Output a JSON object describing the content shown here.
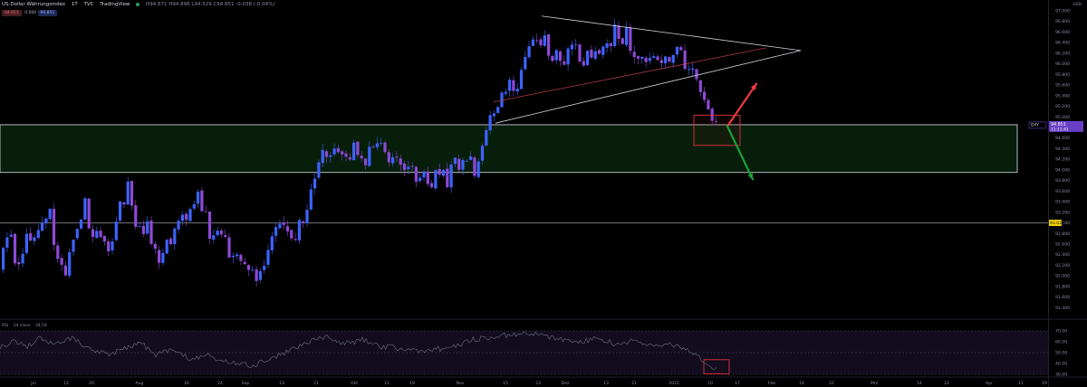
{
  "header": {
    "symbol": "US-Dollar Währungsindex",
    "timeframe": "1T",
    "exchange": "TVC",
    "provider": "TradingView",
    "ohlc": "O94.871 H94.896 L94.529 C94.851 -0.038 (-0.04%)",
    "pill_left": "94.851",
    "pill_mid": "0.000",
    "pill_right": "94.851"
  },
  "price_axis": {
    "currency": "USD",
    "current_label": "DXY",
    "current_price": "94.851",
    "countdown": "11:11:41",
    "marker_price": "93.020"
  },
  "rsi": {
    "label": "RSI",
    "params": "14 close",
    "value": "34.54"
  },
  "colors": {
    "bull": "#3d63ff",
    "bear": "#8e49d6",
    "zone_border": "#c9ccd2",
    "zone_fill": "#07200c",
    "triangle_upper": "#cfd2d8",
    "triangle_lower": "#cfd2d8",
    "channel": "#b03a46",
    "box": "#e0323c",
    "arrow_up": "#ef3b3b",
    "arrow_down": "#16a33a",
    "rsi_line": "#6f7280"
  },
  "chart_data": {
    "type": "candlestick",
    "ylim": [
      91.2,
      97.1
    ],
    "y_ticks": [
      91.4,
      91.6,
      91.8,
      92.0,
      92.2,
      92.4,
      92.6,
      92.8,
      93.0,
      93.2,
      93.4,
      93.6,
      93.8,
      94.0,
      94.2,
      94.4,
      94.6,
      94.8,
      95.0,
      95.2,
      95.4,
      95.6,
      95.8,
      96.0,
      96.2,
      96.4,
      96.6,
      96.8,
      97.0
    ],
    "x_ticks": [
      "Jul",
      "12",
      "20",
      "Aug",
      "16",
      "24",
      "Sep",
      "13",
      "21",
      "Okt",
      "11",
      "19",
      "Nov",
      "15",
      "23",
      "Dez",
      "13",
      "21",
      "2022",
      "10",
      "17",
      "Feb",
      "14",
      "22",
      "Mrz",
      "14",
      "22",
      "Apr",
      "11",
      "19"
    ],
    "price_trend": [
      [
        0,
        91.95
      ],
      [
        8,
        92.55
      ],
      [
        14,
        92.9
      ],
      [
        20,
        92.2
      ],
      [
        27,
        92.55
      ],
      [
        36,
        92.7
      ],
      [
        45,
        92.75
      ],
      [
        58,
        93.15
      ],
      [
        64,
        92.45
      ],
      [
        74,
        91.95
      ],
      [
        85,
        92.75
      ],
      [
        96,
        93.45
      ],
      [
        102,
        92.9
      ],
      [
        112,
        92.85
      ],
      [
        122,
        92.3
      ],
      [
        132,
        93.2
      ],
      [
        140,
        93.5
      ],
      [
        146,
        93.7
      ],
      [
        152,
        93.1
      ],
      [
        158,
        92.8
      ],
      [
        166,
        93.1
      ],
      [
        172,
        92.5
      ],
      [
        180,
        92.2
      ],
      [
        190,
        92.7
      ],
      [
        200,
        92.9
      ],
      [
        212,
        93.2
      ],
      [
        222,
        93.6
      ],
      [
        230,
        93.1
      ],
      [
        236,
        92.7
      ],
      [
        246,
        92.75
      ],
      [
        256,
        92.45
      ],
      [
        266,
        92.35
      ],
      [
        276,
        92.2
      ],
      [
        288,
        91.9
      ],
      [
        298,
        92.6
      ],
      [
        308,
        93.1
      ],
      [
        318,
        92.85
      ],
      [
        330,
        92.8
      ],
      [
        342,
        93.3
      ],
      [
        350,
        93.8
      ],
      [
        356,
        94.45
      ],
      [
        362,
        94.1
      ],
      [
        370,
        94.35
      ],
      [
        378,
        94.4
      ],
      [
        388,
        94.3
      ],
      [
        398,
        94.4
      ],
      [
        404,
        94.1
      ],
      [
        410,
        94.3
      ],
      [
        418,
        94.55
      ],
      [
        426,
        94.45
      ],
      [
        432,
        94.05
      ],
      [
        438,
        94.2
      ],
      [
        446,
        94.1
      ],
      [
        454,
        94.0
      ],
      [
        462,
        93.85
      ],
      [
        470,
        93.95
      ],
      [
        478,
        93.75
      ],
      [
        486,
        93.9
      ],
      [
        492,
        93.85
      ],
      [
        498,
        93.75
      ],
      [
        506,
        94.3
      ],
      [
        512,
        94.05
      ],
      [
        520,
        94.2
      ],
      [
        528,
        94.0
      ],
      [
        536,
        94.6
      ],
      [
        546,
        95.05
      ],
      [
        554,
        95.3
      ],
      [
        562,
        95.6
      ],
      [
        570,
        95.5
      ],
      [
        578,
        95.85
      ],
      [
        586,
        96.35
      ],
      [
        592,
        96.6
      ],
      [
        598,
        96.3
      ],
      [
        604,
        96.5
      ],
      [
        610,
        96.05
      ],
      [
        618,
        96.2
      ],
      [
        626,
        96.05
      ],
      [
        634,
        96.35
      ],
      [
        642,
        96.2
      ],
      [
        650,
        96.05
      ],
      [
        658,
        96.3
      ],
      [
        666,
        96.15
      ],
      [
        674,
        96.3
      ],
      [
        682,
        96.6
      ],
      [
        688,
        96.2
      ],
      [
        694,
        96.65
      ],
      [
        700,
        96.3
      ],
      [
        706,
        96.0
      ],
      [
        714,
        96.15
      ],
      [
        722,
        96.1
      ],
      [
        730,
        96.05
      ],
      [
        738,
        96.0
      ],
      [
        746,
        96.3
      ],
      [
        754,
        96.15
      ],
      [
        760,
        95.95
      ],
      [
        766,
        95.8
      ],
      [
        772,
        95.75
      ],
      [
        778,
        95.55
      ],
      [
        784,
        95.0
      ],
      [
        788,
        94.95
      ],
      [
        792,
        94.85
      ]
    ],
    "support_zone": [
      93.95,
      94.85
    ],
    "horizontal_level": 93.0,
    "rsi_ylim": [
      30,
      70
    ],
    "rsi_ticks": [
      30,
      40,
      50,
      60,
      70
    ],
    "rsi_trend": [
      [
        0,
        55
      ],
      [
        15,
        60
      ],
      [
        30,
        56
      ],
      [
        45,
        64
      ],
      [
        60,
        58
      ],
      [
        80,
        63
      ],
      [
        100,
        52
      ],
      [
        120,
        48
      ],
      [
        140,
        55
      ],
      [
        155,
        60
      ],
      [
        170,
        48
      ],
      [
        190,
        53
      ],
      [
        210,
        44
      ],
      [
        230,
        47
      ],
      [
        255,
        40
      ],
      [
        280,
        38
      ],
      [
        300,
        45
      ],
      [
        320,
        52
      ],
      [
        340,
        60
      ],
      [
        360,
        64
      ],
      [
        380,
        58
      ],
      [
        400,
        62
      ],
      [
        420,
        56
      ],
      [
        440,
        54
      ],
      [
        460,
        52
      ],
      [
        480,
        53
      ],
      [
        500,
        55
      ],
      [
        520,
        62
      ],
      [
        540,
        64
      ],
      [
        560,
        66
      ],
      [
        580,
        68
      ],
      [
        600,
        66
      ],
      [
        620,
        62
      ],
      [
        640,
        60
      ],
      [
        660,
        63
      ],
      [
        680,
        58
      ],
      [
        700,
        61
      ],
      [
        720,
        56
      ],
      [
        740,
        58
      ],
      [
        760,
        52
      ],
      [
        775,
        44
      ],
      [
        785,
        38
      ],
      [
        792,
        34.5
      ]
    ]
  }
}
